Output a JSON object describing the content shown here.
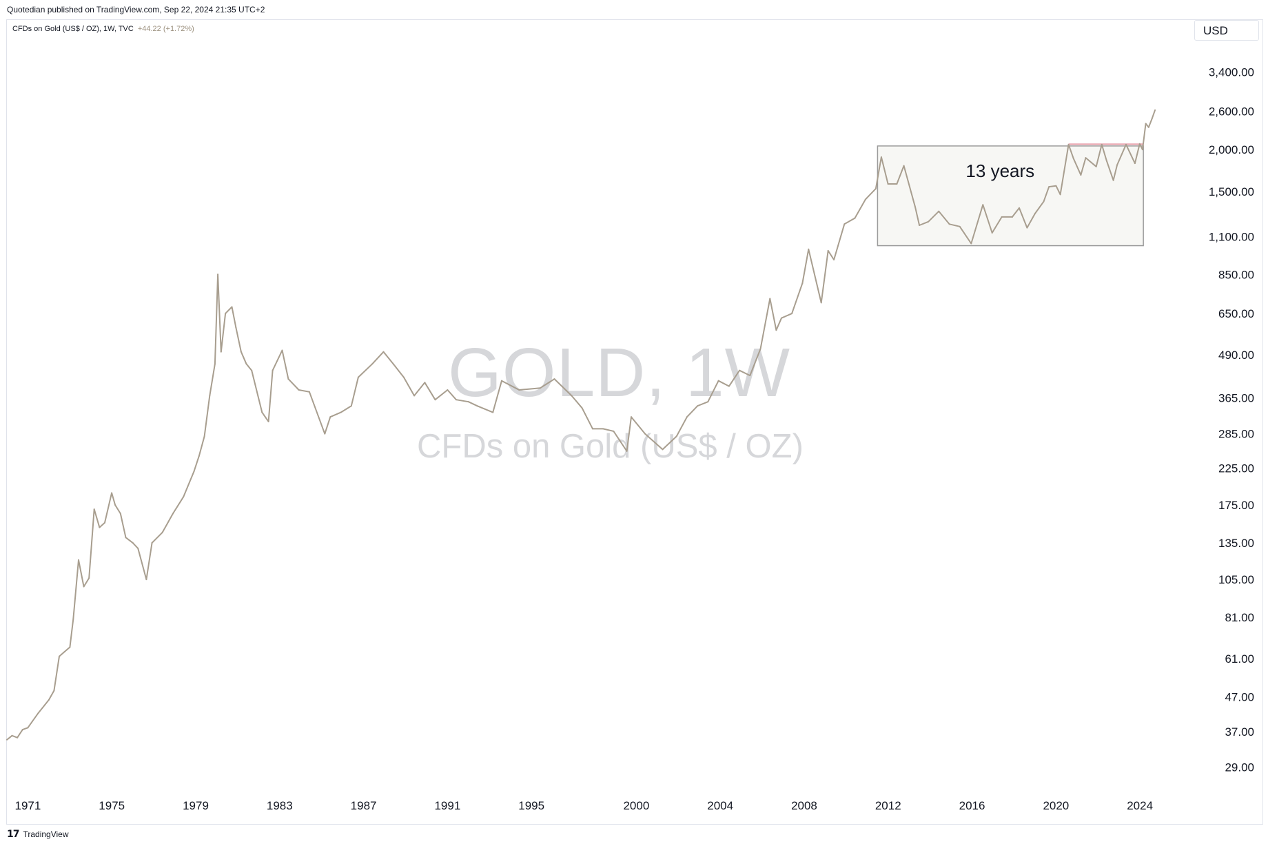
{
  "header": {
    "published": "Quotedian published on TradingView.com, Sep 22, 2024 21:35 UTC+2",
    "symbol_line": "CFDs on Gold (US$ / OZ), 1W, TVC",
    "change": "+44.22 (+1.72%)"
  },
  "currency": "USD",
  "watermark": {
    "symbol": "GOLD, 1W",
    "name": "CFDs on Gold (US$ / OZ)"
  },
  "annotation": {
    "label": "13 years"
  },
  "footer": {
    "brand": "TradingView",
    "brand_icon": "tradingview-logo-icon"
  },
  "colors": {
    "line": "#a89e8f",
    "box_fill": "#f7f7f4",
    "box_border": "#9b9b9b",
    "resistance": "#e8a3ad",
    "axis_text": "#131722",
    "watermark": "#d6d7da"
  },
  "chart_data": {
    "type": "line",
    "title": "",
    "xlabel": "",
    "ylabel": "",
    "y_scale": "log",
    "xlim": [
      "1970-01-01",
      "2025-12-31"
    ],
    "ylim": [
      25,
      4200
    ],
    "grid": false,
    "x_ticks": [
      "1971",
      "1975",
      "1979",
      "1983",
      "1987",
      "1991",
      "1995",
      "2000",
      "2004",
      "2008",
      "2012",
      "2016",
      "2020",
      "2024"
    ],
    "y_ticks": [
      "3,400.00",
      "2,600.00",
      "2,000.00",
      "1,500.00",
      "1,100.00",
      "850.00",
      "650.00",
      "490.00",
      "365.00",
      "285.00",
      "225.00",
      "175.00",
      "135.00",
      "105.00",
      "81.00",
      "61.00",
      "47.00",
      "37.00",
      "29.00"
    ],
    "series": [
      {
        "x": [
          "1970-01-01",
          "1970-04-01",
          "1970-07-01",
          "1970-10-01",
          "1971-01-01",
          "1971-07-01",
          "1972-01-01",
          "1972-04-01",
          "1972-07-01",
          "1972-10-01",
          "1973-01-01",
          "1973-03-01",
          "1973-06-01",
          "1973-09-01",
          "1973-12-01",
          "1974-03-01",
          "1974-06-01",
          "1974-09-01",
          "1974-12-30",
          "1975-03-01",
          "1975-06-01",
          "1975-09-01",
          "1976-01-01",
          "1976-04-01",
          "1976-08-25",
          "1976-12-01",
          "1977-06-01",
          "1977-12-01",
          "1978-06-01",
          "1978-12-01",
          "1979-03-01",
          "1979-06-01",
          "1979-09-01",
          "1979-12-01",
          "1980-01-21",
          "1980-03-17",
          "1980-06-01",
          "1980-09-22",
          "1980-12-01",
          "1981-03-01",
          "1981-06-01",
          "1981-09-01",
          "1982-03-01",
          "1982-06-21",
          "1982-09-01",
          "1983-02-14",
          "1983-06-01",
          "1983-12-01",
          "1984-06-01",
          "1985-02-25",
          "1985-06-01",
          "1985-12-01",
          "1986-06-01",
          "1986-10-01",
          "1987-06-01",
          "1987-12-14",
          "1988-06-01",
          "1988-12-01",
          "1989-06-01",
          "1989-12-01",
          "1990-06-01",
          "1991-01-01",
          "1991-06-01",
          "1992-01-01",
          "1992-06-01",
          "1993-03-01",
          "1993-08-01",
          "1994-06-01",
          "1995-06-01",
          "1996-02-05",
          "1996-12-01",
          "1997-06-01",
          "1997-12-01",
          "1998-06-01",
          "1998-12-01",
          "1999-07-19",
          "1999-10-04",
          "2000-06-01",
          "2001-04-02",
          "2001-12-01",
          "2002-06-01",
          "2002-12-01",
          "2003-06-01",
          "2003-12-01",
          "2004-06-01",
          "2004-12-01",
          "2005-06-01",
          "2005-12-01",
          "2006-05-15",
          "2006-09-01",
          "2006-12-01",
          "2007-06-01",
          "2007-12-01",
          "2008-03-17",
          "2008-10-24",
          "2009-02-20",
          "2009-06-01",
          "2009-12-01",
          "2010-06-01",
          "2010-12-01",
          "2011-06-01",
          "2011-09-05",
          "2011-12-30",
          "2012-06-01",
          "2012-10-01",
          "2013-04-15",
          "2013-06-28",
          "2013-12-01",
          "2014-06-01",
          "2014-12-01",
          "2015-06-01",
          "2015-12-17",
          "2016-07-08",
          "2016-12-15",
          "2017-06-01",
          "2017-12-01",
          "2018-04-01",
          "2018-08-16",
          "2019-01-01",
          "2019-06-01",
          "2019-09-01",
          "2020-01-01",
          "2020-03-16",
          "2020-08-07",
          "2020-11-01",
          "2021-03-08",
          "2021-06-01",
          "2021-12-01",
          "2022-03-08",
          "2022-06-01",
          "2022-09-26",
          "2022-12-01",
          "2023-05-04",
          "2023-10-06",
          "2023-12-28",
          "2024-02-15",
          "2024-04-12",
          "2024-06-01",
          "2024-08-01",
          "2024-09-20"
        ],
        "values": [
          35,
          36,
          35.5,
          37.5,
          38,
          42,
          46,
          49,
          62,
          64,
          66,
          80,
          120,
          100,
          106,
          170,
          150,
          155,
          190,
          175,
          165,
          140,
          135,
          130,
          105,
          135,
          145,
          165,
          185,
          220,
          245,
          280,
          370,
          460,
          850,
          500,
          650,
          680,
          590,
          500,
          460,
          440,
          330,
          310,
          440,
          505,
          415,
          385,
          380,
          285,
          320,
          330,
          345,
          420,
          460,
          500,
          460,
          420,
          370,
          405,
          360,
          385,
          360,
          355,
          345,
          330,
          410,
          385,
          390,
          415,
          370,
          340,
          295,
          295,
          290,
          253,
          320,
          285,
          256,
          280,
          320,
          345,
          355,
          410,
          395,
          440,
          425,
          510,
          720,
          580,
          630,
          650,
          800,
          1010,
          700,
          1000,
          940,
          1200,
          1250,
          1420,
          1530,
          1900,
          1580,
          1580,
          1790,
          1350,
          1190,
          1220,
          1310,
          1200,
          1180,
          1050,
          1370,
          1130,
          1260,
          1260,
          1340,
          1170,
          1290,
          1400,
          1550,
          1560,
          1470,
          2070,
          1880,
          1680,
          1890,
          1780,
          2070,
          1850,
          1620,
          1800,
          2070,
          1820,
          2080,
          2000,
          2390,
          2330,
          2480,
          2622
        ]
      }
    ],
    "annotations": [
      {
        "type": "box",
        "label": "13 years",
        "x": [
          "2011-07-01",
          "2024-03-01"
        ],
        "y": [
          1035,
          2050
        ]
      },
      {
        "type": "hline",
        "x": [
          "2020-08-07",
          "2024-03-01"
        ],
        "y": 2075
      }
    ]
  }
}
